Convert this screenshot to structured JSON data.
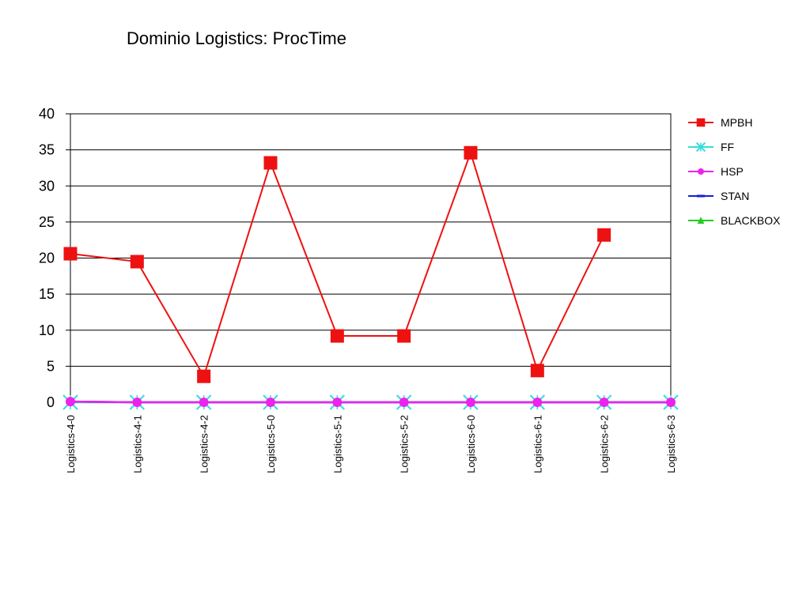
{
  "chart_data": {
    "type": "line",
    "title": "Dominio Logistics: ProcTime",
    "xlabel": "",
    "ylabel": "",
    "ylim": [
      0,
      40
    ],
    "yticks": [
      0,
      5,
      10,
      15,
      20,
      25,
      30,
      35,
      40
    ],
    "grid": true,
    "legend_position": "right",
    "categories": [
      "Logistics-4-0",
      "Logistics-4-1",
      "Logistics-4-2",
      "Logistics-5-0",
      "Logistics-5-1",
      "Logistics-5-2",
      "Logistics-6-0",
      "Logistics-6-1",
      "Logistics-6-2",
      "Logistics-6-3"
    ],
    "series": [
      {
        "name": "MPBH",
        "color": "#ee1111",
        "marker": "square",
        "values": [
          20.6,
          19.5,
          3.6,
          33.2,
          9.2,
          9.2,
          34.6,
          4.4,
          23.2,
          null
        ]
      },
      {
        "name": "FF",
        "color": "#33dddd",
        "marker": "asterisk",
        "values": [
          0,
          0,
          0,
          0,
          0,
          0,
          0,
          0,
          0,
          0
        ]
      },
      {
        "name": "HSP",
        "color": "#ee22ee",
        "marker": "circle",
        "values": [
          0.1,
          0,
          0,
          0,
          0,
          0,
          0,
          0,
          0,
          0
        ]
      },
      {
        "name": "STAN",
        "color": "#1122cc",
        "marker": "dash",
        "values": [
          0.1,
          0,
          0,
          0,
          0,
          0,
          0,
          0,
          0,
          0
        ]
      },
      {
        "name": "BLACKBOX",
        "color": "#22cc22",
        "marker": "triangle",
        "values": [
          null,
          null,
          null,
          null,
          null,
          null,
          null,
          null,
          null,
          null
        ]
      }
    ]
  }
}
